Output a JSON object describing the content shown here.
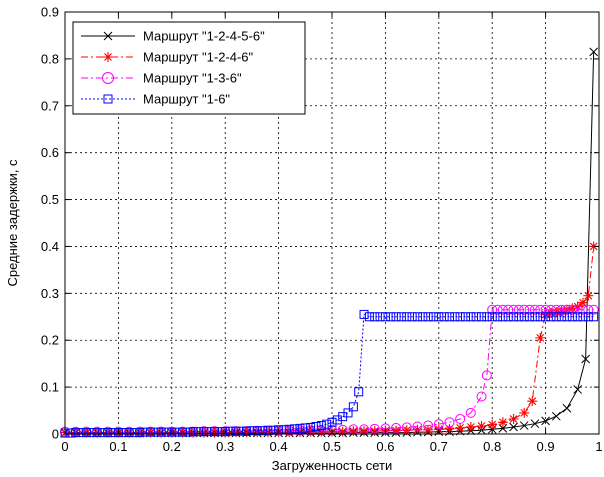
{
  "chart_data": {
    "type": "line",
    "title": "",
    "xlabel": "Загруженность сети",
    "ylabel": "Средние задержки, с",
    "xlim": [
      0,
      1
    ],
    "ylim": [
      0,
      0.9
    ],
    "xticks": [
      "0",
      "0.1",
      "0.2",
      "0.3",
      "0.4",
      "0.5",
      "0.6",
      "0.7",
      "0.8",
      "0.9",
      "1"
    ],
    "yticks": [
      "0",
      "0.1",
      "0.2",
      "0.3",
      "0.4",
      "0.5",
      "0.6",
      "0.7",
      "0.8",
      "0.9"
    ],
    "grid": true,
    "legend_position": "top-left",
    "series": [
      {
        "name": "Маршрут \"1-2-4-5-6\"",
        "color": "#000000",
        "line_style": "solid",
        "marker": "x",
        "x": [
          0.0,
          0.02,
          0.04,
          0.06,
          0.08,
          0.1,
          0.12,
          0.14,
          0.16,
          0.18,
          0.2,
          0.22,
          0.24,
          0.26,
          0.28,
          0.3,
          0.32,
          0.34,
          0.36,
          0.38,
          0.4,
          0.42,
          0.44,
          0.46,
          0.48,
          0.5,
          0.52,
          0.54,
          0.56,
          0.58,
          0.6,
          0.62,
          0.64,
          0.66,
          0.68,
          0.7,
          0.72,
          0.74,
          0.76,
          0.78,
          0.8,
          0.82,
          0.84,
          0.86,
          0.88,
          0.9,
          0.92,
          0.94,
          0.96,
          0.975,
          0.99
        ],
        "y": [
          0.002,
          0.002,
          0.002,
          0.002,
          0.002,
          0.002,
          0.002,
          0.002,
          0.002,
          0.002,
          0.002,
          0.002,
          0.002,
          0.002,
          0.002,
          0.002,
          0.002,
          0.002,
          0.002,
          0.002,
          0.002,
          0.002,
          0.002,
          0.002,
          0.002,
          0.002,
          0.002,
          0.003,
          0.003,
          0.003,
          0.003,
          0.003,
          0.003,
          0.004,
          0.004,
          0.005,
          0.005,
          0.006,
          0.007,
          0.008,
          0.01,
          0.012,
          0.015,
          0.018,
          0.022,
          0.028,
          0.038,
          0.055,
          0.095,
          0.16,
          0.815
        ]
      },
      {
        "name": "Маршрут \"1-2-4-6\"",
        "color": "#ff0000",
        "line_style": "dashdot",
        "marker": "*",
        "x": [
          0.0,
          0.02,
          0.04,
          0.06,
          0.08,
          0.1,
          0.12,
          0.14,
          0.16,
          0.18,
          0.2,
          0.22,
          0.24,
          0.26,
          0.28,
          0.3,
          0.32,
          0.34,
          0.36,
          0.38,
          0.4,
          0.42,
          0.44,
          0.46,
          0.48,
          0.5,
          0.52,
          0.54,
          0.56,
          0.58,
          0.6,
          0.62,
          0.64,
          0.66,
          0.68,
          0.7,
          0.72,
          0.74,
          0.76,
          0.78,
          0.8,
          0.82,
          0.84,
          0.86,
          0.875,
          0.89,
          0.9,
          0.91,
          0.92,
          0.93,
          0.94,
          0.95,
          0.96,
          0.97,
          0.98,
          0.99
        ],
        "y": [
          0.003,
          0.003,
          0.003,
          0.003,
          0.003,
          0.003,
          0.003,
          0.003,
          0.003,
          0.003,
          0.003,
          0.003,
          0.003,
          0.003,
          0.003,
          0.003,
          0.004,
          0.004,
          0.004,
          0.004,
          0.004,
          0.004,
          0.004,
          0.005,
          0.005,
          0.005,
          0.005,
          0.006,
          0.006,
          0.006,
          0.007,
          0.007,
          0.008,
          0.009,
          0.009,
          0.01,
          0.011,
          0.013,
          0.015,
          0.017,
          0.02,
          0.025,
          0.032,
          0.045,
          0.07,
          0.205,
          0.255,
          0.258,
          0.26,
          0.262,
          0.265,
          0.268,
          0.272,
          0.28,
          0.295,
          0.4
        ]
      },
      {
        "name": "Маршрут \"1-3-6\"",
        "color": "#ff00ff",
        "line_style": "dashdot",
        "marker": "o",
        "x": [
          0.0,
          0.02,
          0.04,
          0.06,
          0.08,
          0.1,
          0.12,
          0.14,
          0.16,
          0.18,
          0.2,
          0.22,
          0.24,
          0.26,
          0.28,
          0.3,
          0.32,
          0.34,
          0.36,
          0.38,
          0.4,
          0.42,
          0.44,
          0.46,
          0.48,
          0.5,
          0.52,
          0.54,
          0.56,
          0.58,
          0.6,
          0.62,
          0.64,
          0.66,
          0.68,
          0.7,
          0.72,
          0.74,
          0.76,
          0.78,
          0.79,
          0.8,
          0.81,
          0.82,
          0.83,
          0.84,
          0.85,
          0.86,
          0.87,
          0.88,
          0.89,
          0.9,
          0.91,
          0.92,
          0.93,
          0.94,
          0.95,
          0.96,
          0.97,
          0.98,
          0.99
        ],
        "y": [
          0.005,
          0.005,
          0.005,
          0.005,
          0.005,
          0.005,
          0.005,
          0.005,
          0.005,
          0.005,
          0.005,
          0.005,
          0.005,
          0.006,
          0.006,
          0.006,
          0.006,
          0.006,
          0.007,
          0.007,
          0.007,
          0.007,
          0.008,
          0.008,
          0.008,
          0.009,
          0.009,
          0.01,
          0.01,
          0.011,
          0.012,
          0.013,
          0.014,
          0.016,
          0.018,
          0.021,
          0.025,
          0.032,
          0.045,
          0.08,
          0.125,
          0.265,
          0.265,
          0.265,
          0.265,
          0.265,
          0.265,
          0.265,
          0.265,
          0.265,
          0.265,
          0.265,
          0.265,
          0.265,
          0.265,
          0.265,
          0.265,
          0.265,
          0.265,
          0.265,
          0.265
        ]
      },
      {
        "name": "Маршрут \"1-6\"",
        "color": "#0000ff",
        "line_style": "dotted",
        "marker": "s",
        "x": [
          0.0,
          0.01,
          0.02,
          0.03,
          0.04,
          0.05,
          0.06,
          0.07,
          0.08,
          0.09,
          0.1,
          0.11,
          0.12,
          0.13,
          0.14,
          0.15,
          0.16,
          0.17,
          0.18,
          0.19,
          0.2,
          0.21,
          0.22,
          0.23,
          0.24,
          0.25,
          0.26,
          0.27,
          0.28,
          0.29,
          0.3,
          0.31,
          0.32,
          0.33,
          0.34,
          0.35,
          0.36,
          0.37,
          0.38,
          0.39,
          0.4,
          0.41,
          0.42,
          0.43,
          0.44,
          0.45,
          0.46,
          0.47,
          0.48,
          0.49,
          0.5,
          0.51,
          0.52,
          0.53,
          0.54,
          0.55,
          0.56,
          0.57,
          0.58,
          0.59,
          0.6,
          0.61,
          0.62,
          0.63,
          0.64,
          0.65,
          0.66,
          0.67,
          0.68,
          0.69,
          0.7,
          0.71,
          0.72,
          0.73,
          0.74,
          0.75,
          0.76,
          0.77,
          0.78,
          0.79,
          0.8,
          0.81,
          0.82,
          0.83,
          0.84,
          0.85,
          0.86,
          0.87,
          0.88,
          0.89,
          0.9,
          0.91,
          0.92,
          0.93,
          0.94,
          0.95,
          0.96,
          0.97,
          0.98,
          0.99
        ],
        "y": [
          0.002,
          0.002,
          0.003,
          0.003,
          0.003,
          0.003,
          0.003,
          0.003,
          0.003,
          0.003,
          0.003,
          0.003,
          0.003,
          0.003,
          0.003,
          0.004,
          0.004,
          0.004,
          0.004,
          0.004,
          0.004,
          0.004,
          0.004,
          0.004,
          0.005,
          0.005,
          0.005,
          0.005,
          0.005,
          0.005,
          0.005,
          0.006,
          0.006,
          0.006,
          0.006,
          0.007,
          0.007,
          0.007,
          0.008,
          0.008,
          0.009,
          0.009,
          0.01,
          0.011,
          0.012,
          0.013,
          0.014,
          0.016,
          0.018,
          0.021,
          0.025,
          0.03,
          0.037,
          0.045,
          0.058,
          0.09,
          0.255,
          0.25,
          0.25,
          0.25,
          0.25,
          0.25,
          0.25,
          0.25,
          0.25,
          0.25,
          0.25,
          0.25,
          0.25,
          0.25,
          0.25,
          0.25,
          0.25,
          0.25,
          0.25,
          0.25,
          0.25,
          0.25,
          0.25,
          0.25,
          0.25,
          0.25,
          0.25,
          0.25,
          0.25,
          0.25,
          0.25,
          0.25,
          0.25,
          0.25,
          0.25,
          0.25,
          0.25,
          0.25,
          0.25,
          0.25,
          0.25,
          0.25,
          0.25,
          0.25
        ]
      }
    ]
  }
}
